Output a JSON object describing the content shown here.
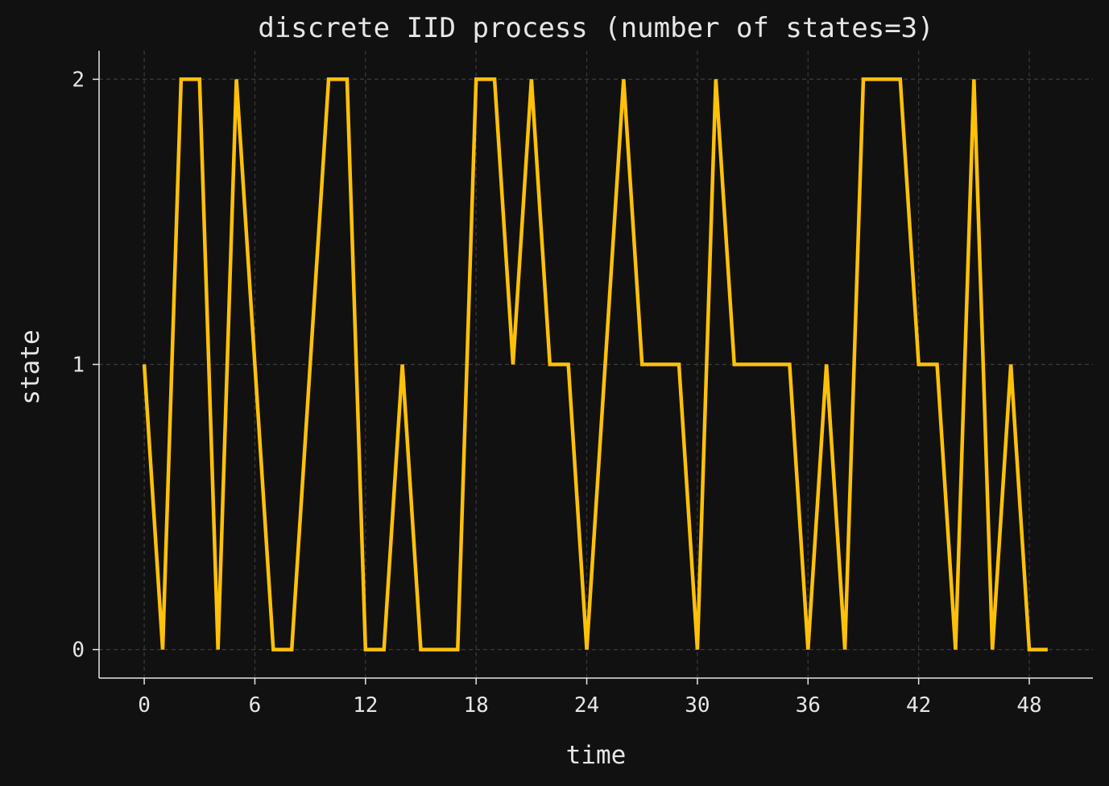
{
  "chart_data": {
    "type": "line",
    "title": "discrete IID process (number of states=3)",
    "xlabel": "time",
    "ylabel": "state",
    "xlim": [
      -2.45,
      51.45
    ],
    "ylim": [
      -0.1,
      2.1
    ],
    "xticks": [
      0,
      6,
      12,
      18,
      24,
      30,
      36,
      42,
      48
    ],
    "yticks": [
      0,
      1,
      2
    ],
    "grid": true,
    "series": [
      {
        "color": "#ffc107",
        "x": [
          0,
          1,
          2,
          3,
          4,
          5,
          6,
          7,
          8,
          9,
          10,
          11,
          12,
          13,
          14,
          15,
          16,
          17,
          18,
          19,
          20,
          21,
          22,
          23,
          24,
          25,
          26,
          27,
          28,
          29,
          30,
          31,
          32,
          33,
          34,
          35,
          36,
          37,
          38,
          39,
          40,
          41,
          42,
          43,
          44,
          45,
          46,
          47,
          48,
          49
        ],
        "y": [
          1,
          0,
          2,
          2,
          0,
          2,
          1,
          0,
          0,
          1,
          2,
          2,
          0,
          0,
          1,
          0,
          0,
          0,
          2,
          2,
          1,
          2,
          1,
          1,
          0,
          1,
          2,
          1,
          1,
          1,
          0,
          2,
          1,
          1,
          1,
          1,
          0,
          1,
          0,
          2,
          2,
          2,
          1,
          1,
          0,
          2,
          0,
          1,
          0,
          0
        ]
      }
    ]
  },
  "colors": {
    "background": "#111111",
    "axes": "#e6e6e6",
    "grid": "#3a3a3a",
    "line": "#ffc107"
  }
}
